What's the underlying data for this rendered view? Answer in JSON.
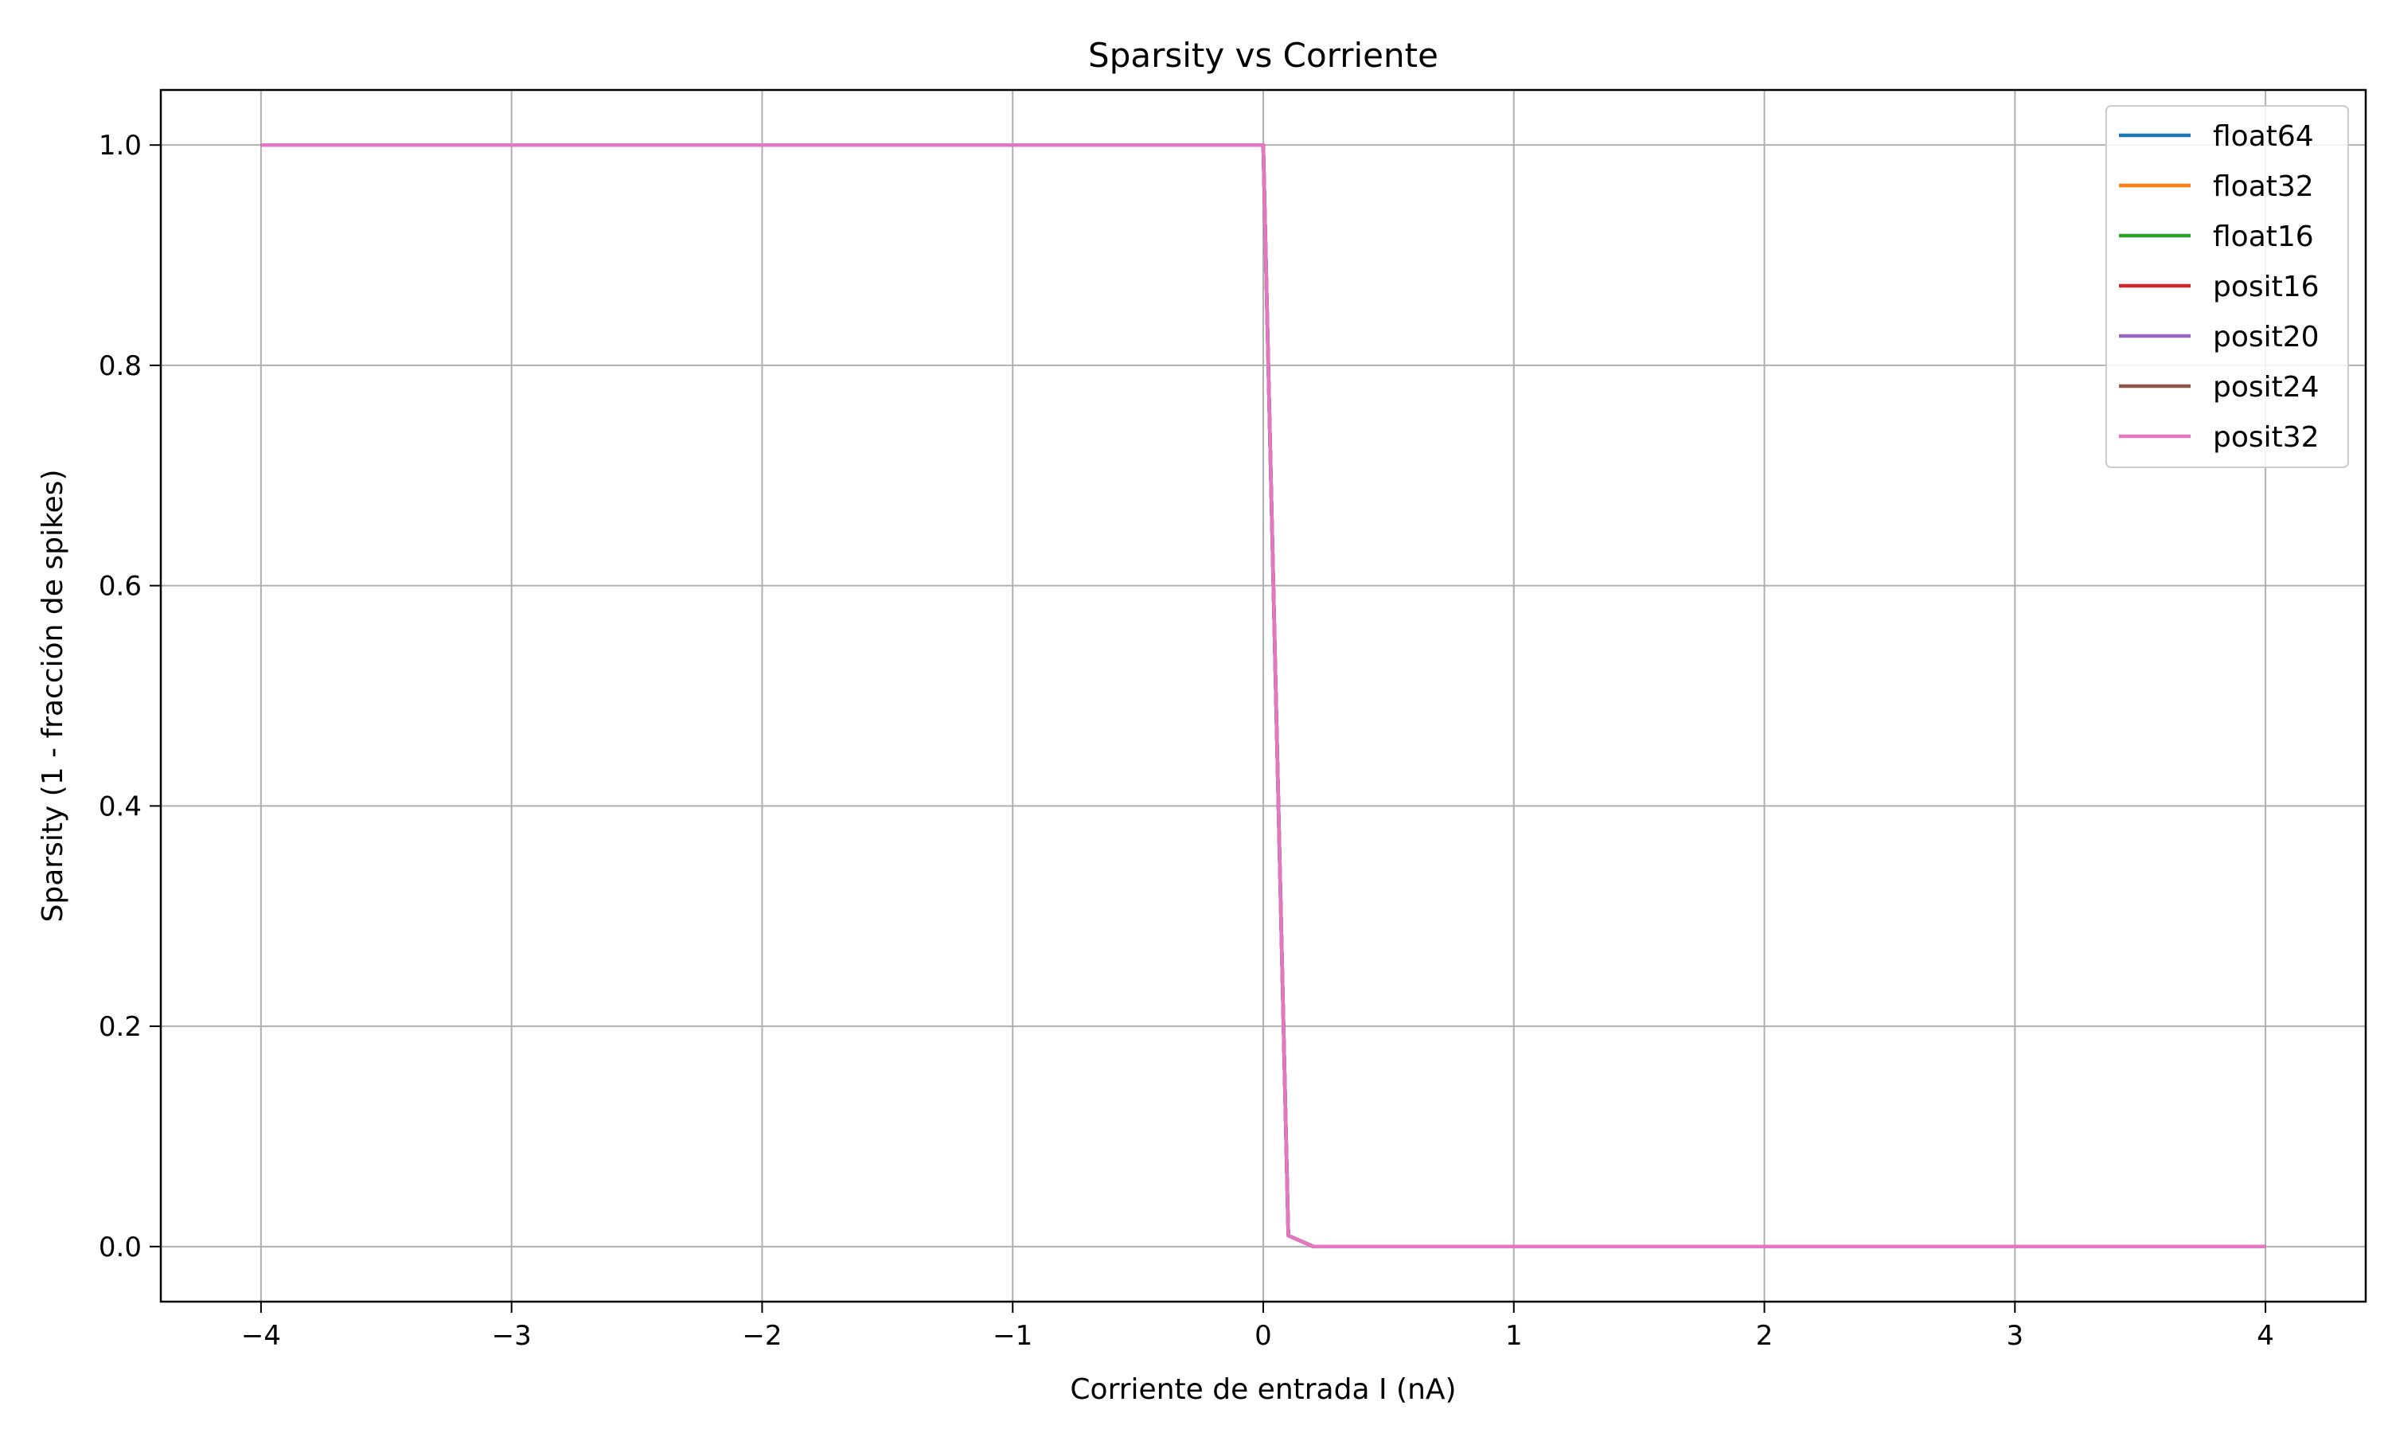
{
  "chart_data": {
    "type": "line",
    "title": "Sparsity vs Corriente",
    "xlabel": "Corriente de entrada I (nA)",
    "ylabel": "Sparsity (1 - fracción de spikes)",
    "xlim": [
      -4.4,
      4.4
    ],
    "ylim": [
      -0.05,
      1.05
    ],
    "xticks": [
      -4,
      -3,
      -2,
      -1,
      0,
      1,
      2,
      3,
      4
    ],
    "xtick_labels": [
      "−4",
      "−3",
      "−2",
      "−1",
      "0",
      "1",
      "2",
      "3",
      "4"
    ],
    "yticks": [
      0.0,
      0.2,
      0.4,
      0.6,
      0.8,
      1.0
    ],
    "ytick_labels": [
      "0.0",
      "0.2",
      "0.4",
      "0.6",
      "0.8",
      "1.0"
    ],
    "grid": true,
    "legend_position": "top-right",
    "x": [
      -4.0,
      0.0,
      0.1,
      0.2,
      4.0
    ],
    "series": [
      {
        "name": "float64",
        "color": "#1f77b4",
        "values": [
          1.0,
          1.0,
          0.01,
          0.0,
          0.0
        ]
      },
      {
        "name": "float32",
        "color": "#ff7f0e",
        "values": [
          1.0,
          1.0,
          0.01,
          0.0,
          0.0
        ]
      },
      {
        "name": "float16",
        "color": "#2ca02c",
        "values": [
          1.0,
          1.0,
          0.01,
          0.0,
          0.0
        ]
      },
      {
        "name": "posit16",
        "color": "#d62728",
        "values": [
          1.0,
          1.0,
          0.01,
          0.0,
          0.0
        ]
      },
      {
        "name": "posit20",
        "color": "#9467bd",
        "values": [
          1.0,
          1.0,
          0.01,
          0.0,
          0.0
        ]
      },
      {
        "name": "posit24",
        "color": "#8c564b",
        "values": [
          1.0,
          1.0,
          0.01,
          0.0,
          0.0
        ]
      },
      {
        "name": "posit32",
        "color": "#e377c2",
        "values": [
          1.0,
          1.0,
          0.01,
          0.0,
          0.0
        ]
      }
    ]
  }
}
